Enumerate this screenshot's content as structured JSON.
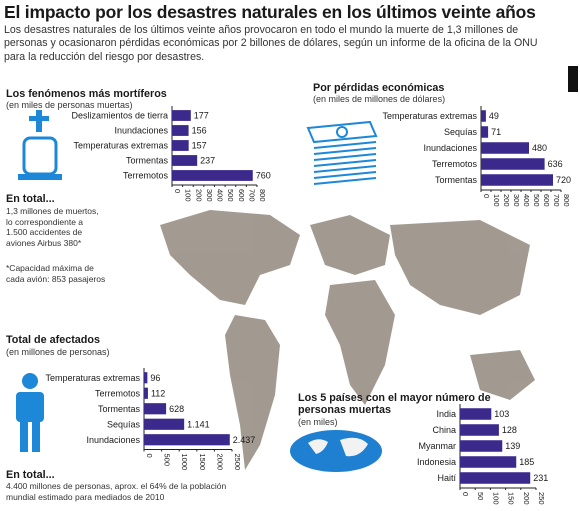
{
  "header": {
    "title": "El impacto por los desastres naturales en los últimos veinte años",
    "intro": "Los desastres naturales de los últimos veinte años provocaron en todo el mundo la muerte de 1,3 millones de personas y ocasionaron pérdidas económicas por 2 billones de dólares, según un informe de la oficina de la ONU para la reducción del riesgo por desastres."
  },
  "colors": {
    "bar": "#3b2a8c",
    "axis": "#222222",
    "icon_blue": "#1e88d8",
    "map_land": "#8c8275",
    "ocean_globe": "#1f7fd0"
  },
  "icons": [
    "cross-icon",
    "tombstone-icon",
    "money-stack-icon",
    "person-icon",
    "globe-icon",
    "brand-logo-icon"
  ],
  "totals": {
    "deaths_heading": "En total...",
    "deaths_text": "1,3 millones de muertos, lo correspondiente a 1.500 accidentes de aviones Airbus 380*",
    "capacity_note": "*Capacidad máxima de cada avión: 853 pasajeros",
    "affected_heading": "En total...",
    "affected_text": "4.400 millones de personas, aprox. el 64% de la población mundial estimado para mediados de 2010"
  },
  "chart_data": [
    {
      "id": "deadliest",
      "type": "bar",
      "title": "Los fenómenos más mortíferos",
      "subtitle": "(en miles de personas muertas)",
      "categories": [
        "Deslizamientos de tierra",
        "Inundaciones",
        "Temperaturas extremas",
        "Tormentas",
        "Terremotos"
      ],
      "values": [
        177,
        156,
        157,
        237,
        760
      ],
      "value_labels": [
        "177",
        "156",
        "157",
        "237",
        "760"
      ],
      "xlim": [
        0,
        800
      ],
      "ticks": [
        "0",
        "100",
        "200",
        "300",
        "400",
        "500",
        "600",
        "700",
        "800"
      ]
    },
    {
      "id": "economic",
      "type": "bar",
      "title": "Por pérdidas económicas",
      "subtitle": "(en miles de millones de dólares)",
      "categories": [
        "Temperaturas extremas",
        "Sequías",
        "Inundaciones",
        "Terremotos",
        "Tormentas"
      ],
      "values": [
        49,
        71,
        480,
        636,
        720
      ],
      "value_labels": [
        "49",
        "71",
        "480",
        "636",
        "720"
      ],
      "xlim": [
        0,
        800
      ],
      "ticks": [
        "0",
        "100",
        "200",
        "300",
        "400",
        "500",
        "600",
        "700",
        "800"
      ]
    },
    {
      "id": "affected",
      "type": "bar",
      "title": "Total de afectados",
      "subtitle": "(en millones de personas)",
      "categories": [
        "Temperaturas extremas",
        "Terremotos",
        "Tormentas",
        "Sequías",
        "Inundaciones"
      ],
      "values": [
        96,
        112,
        628,
        1141,
        2437
      ],
      "value_labels": [
        "96",
        "112",
        "628",
        "1.141",
        "2.437"
      ],
      "xlim": [
        0,
        2500
      ],
      "ticks": [
        "0",
        "500",
        "1000",
        "1500",
        "2000",
        "2500"
      ]
    },
    {
      "id": "countries",
      "type": "bar",
      "title": "Los 5 países con el mayor número de personas muertas",
      "subtitle": "(en miles)",
      "categories": [
        "India",
        "China",
        "Myanmar",
        "Indonesia",
        "Haití"
      ],
      "values": [
        103,
        128,
        139,
        185,
        231
      ],
      "value_labels": [
        "103",
        "128",
        "139",
        "185",
        "231"
      ],
      "xlim": [
        0,
        250
      ],
      "ticks": [
        "0",
        "50",
        "100",
        "150",
        "200",
        "250"
      ]
    }
  ]
}
